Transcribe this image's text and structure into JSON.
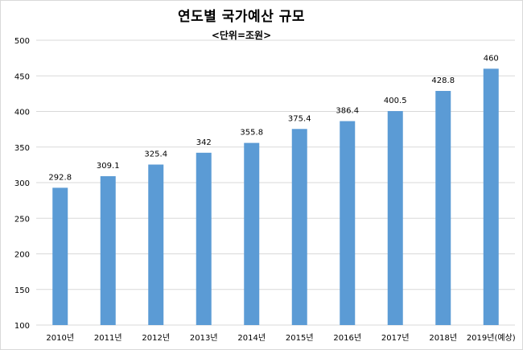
{
  "chart_data": {
    "type": "bar",
    "title": "연도별 국가예산 규모",
    "subtitle": "<단위=조원>",
    "xlabel": "",
    "ylabel": "",
    "categories": [
      "2010년",
      "2011년",
      "2012년",
      "2013년",
      "2014년",
      "2015년",
      "2016년",
      "2017년",
      "2018년",
      "2019년(예상)"
    ],
    "values": [
      292.8,
      309.1,
      325.4,
      342,
      355.8,
      375.4,
      386.4,
      400.5,
      428.8,
      460
    ],
    "value_labels": [
      "292.8",
      "309.1",
      "325.4",
      "342",
      "355.8",
      "375.4",
      "386.4",
      "400.5",
      "428.8",
      "460"
    ],
    "ylim": [
      100,
      500
    ],
    "yticks": [
      100,
      150,
      200,
      250,
      300,
      350,
      400,
      450,
      500
    ],
    "grid": true,
    "legend": "none",
    "colors": {
      "bar": "#5B9BD5",
      "grid": "#d9d9d9",
      "axis_text": "#000000"
    }
  }
}
